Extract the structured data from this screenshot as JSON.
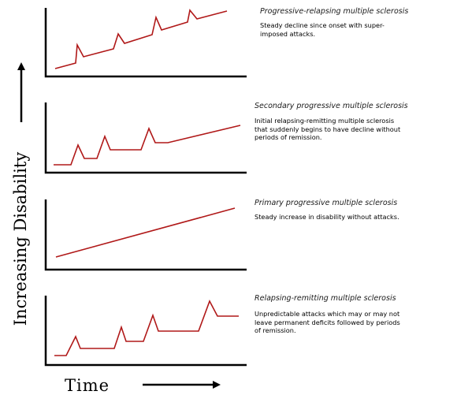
{
  "axes": {
    "y_label": "Increasing Disability",
    "x_label": "Time"
  },
  "panels": [
    {
      "title": "Progressive-relapsing multiple sclerosis",
      "description": "Steady decline since onset with super-\nimposed attacks."
    },
    {
      "title": "Secondary progressive multiple sclerosis",
      "description": "Initial relapsing-remitting multiple sclerosis\nthat suddenly begins to have decline without\nperiods of remission."
    },
    {
      "title": "Primary progressive multiple sclerosis",
      "description": "Steady increase in disability without attacks."
    },
    {
      "title": "Relapsing-remitting multiple sclerosis",
      "description": "Unpredictable attacks which may or may not\nleave permanent deficits followed by periods\nof remission."
    }
  ],
  "colors": {
    "curve": "#b01818",
    "axis": "#000000"
  }
}
